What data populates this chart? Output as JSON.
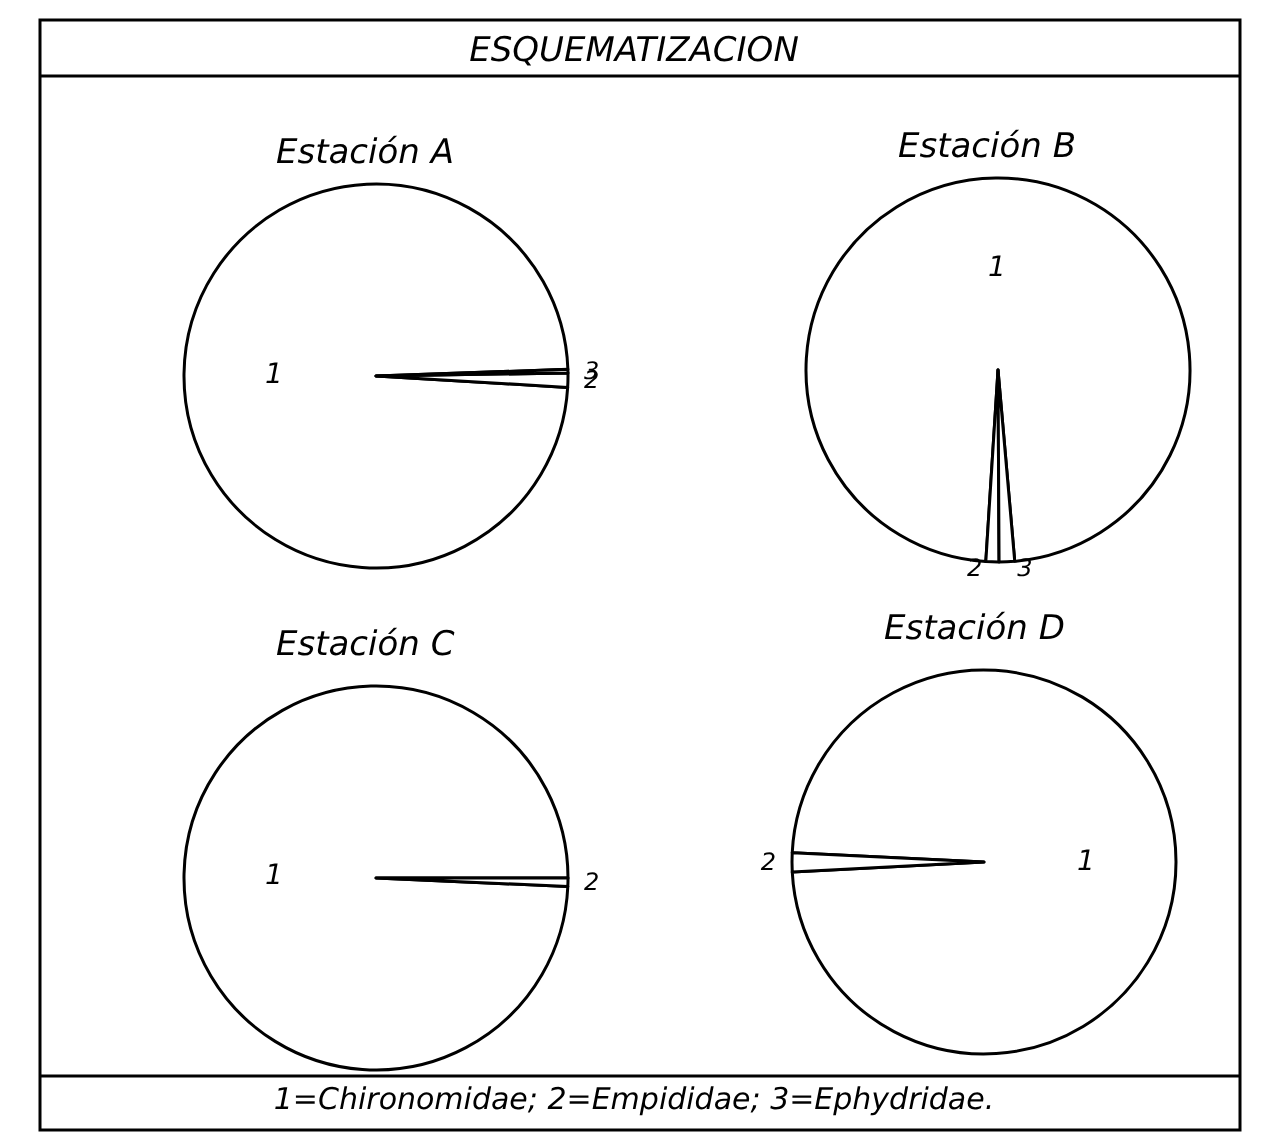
{
  "chart_data": [
    {
      "type": "pie",
      "title": "ESQUEMATIZACION",
      "subtitle": "Estación A",
      "categories": [
        "1",
        "2",
        "3"
      ],
      "values": [
        98.5,
        1.2,
        0.3
      ],
      "colors": [
        "#ffffff",
        "#ffffff",
        "#ffffff"
      ]
    },
    {
      "type": "pie",
      "subtitle": "Estación B",
      "categories": [
        "1",
        "2",
        "3"
      ],
      "values": [
        97.6,
        1.1,
        1.3
      ],
      "colors": [
        "#ffffff",
        "#ffffff",
        "#ffffff"
      ]
    },
    {
      "type": "pie",
      "subtitle": "Estación C",
      "categories": [
        "1",
        "2"
      ],
      "values": [
        99.3,
        0.7
      ],
      "colors": [
        "#ffffff",
        "#ffffff"
      ]
    },
    {
      "type": "pie",
      "subtitle": "Estación D",
      "categories": [
        "1",
        "2"
      ],
      "values": [
        98.4,
        1.6
      ],
      "colors": [
        "#ffffff",
        "#ffffff"
      ],
      "annotations": [
        "1=Chironomidae; 2=Empididae; 3=Ephydridae."
      ]
    }
  ]
}
